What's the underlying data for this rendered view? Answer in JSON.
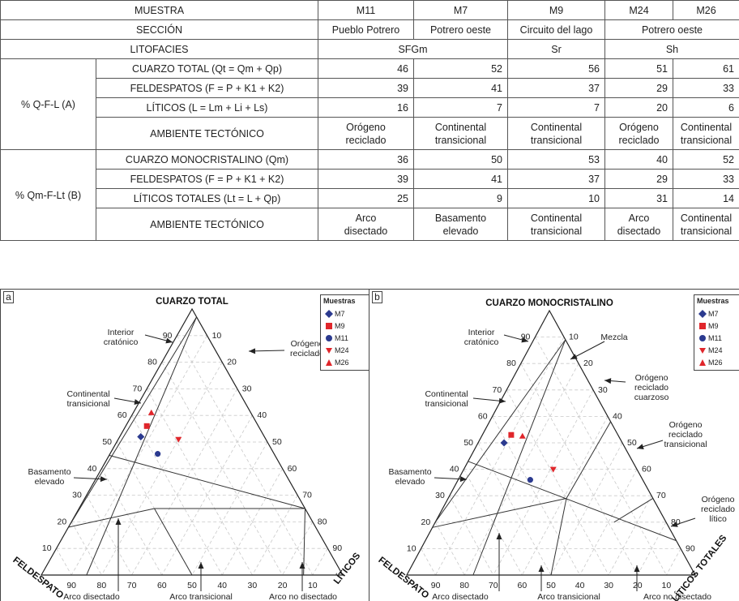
{
  "table": {
    "row_muestra": {
      "label": "MUESTRA",
      "values": [
        "M11",
        "M7",
        "M9",
        "M24",
        "M26"
      ]
    },
    "row_seccion": {
      "label": "SECCIÓN",
      "values": [
        "Pueblo Potrero",
        "Potrero oeste",
        "Circuito del lago",
        "Potrero oeste"
      ]
    },
    "row_litofacies": {
      "label": "LITOFACIES",
      "values": [
        "SFGm",
        "Sr",
        "Sh"
      ]
    },
    "group_a": {
      "label": "% Q-F-L (A)",
      "rows": [
        {
          "label": "CUARZO TOTAL (Qt = Qm + Qp)",
          "values": [
            "46",
            "52",
            "56",
            "51",
            "61"
          ]
        },
        {
          "label": "FELDESPATOS (F = P + K1 + K2)",
          "values": [
            "39",
            "41",
            "37",
            "29",
            "33"
          ]
        },
        {
          "label": "LÍTICOS (L = Lm + Li + Ls)",
          "values": [
            "16",
            "7",
            "7",
            "20",
            "6"
          ]
        }
      ],
      "ambiente": {
        "label": "AMBIENTE TECTÓNICO",
        "values": [
          [
            "Orógeno",
            "reciclado"
          ],
          [
            "Continental",
            "transicional"
          ],
          [
            "Continental",
            "transicional"
          ],
          [
            "Orógeno",
            "reciclado"
          ],
          [
            "Continental",
            "transicional"
          ]
        ]
      }
    },
    "group_b": {
      "label": "% Qm-F-Lt (B)",
      "rows": [
        {
          "label": "CUARZO MONOCRISTALINO (Qm)",
          "values": [
            "36",
            "50",
            "53",
            "40",
            "52"
          ]
        },
        {
          "label": "FELDESPATOS (F = P + K1 + K2)",
          "values": [
            "39",
            "41",
            "37",
            "29",
            "33"
          ]
        },
        {
          "label": "LÍTICOS TOTALES (Lt = L + Qp)",
          "values": [
            "25",
            "9",
            "10",
            "31",
            "14"
          ]
        }
      ],
      "ambiente": {
        "label": "AMBIENTE TECTÓNICO",
        "values": [
          [
            "Arco",
            "disectado"
          ],
          [
            "Basamento",
            "elevado"
          ],
          [
            "Continental",
            "transicional"
          ],
          [
            "Arco",
            "disectado"
          ],
          [
            "Continental",
            "transicional"
          ]
        ]
      }
    }
  },
  "legend": {
    "title": "Muestras",
    "items": [
      {
        "name": "M7",
        "symbol": "diamond",
        "color": "#2b3a8f"
      },
      {
        "name": "M9",
        "symbol": "square",
        "color": "#e0262b"
      },
      {
        "name": "M11",
        "symbol": "circle",
        "color": "#2b3a8f"
      },
      {
        "name": "M24",
        "symbol": "triangle-down",
        "color": "#e0262b"
      },
      {
        "name": "M26",
        "symbol": "triangle-up",
        "color": "#e0262b"
      }
    ]
  },
  "diagram_a": {
    "panel_label": "a",
    "apex_top": "CUARZO TOTAL",
    "apex_left": "FELDESPATO",
    "apex_right": "LÍTICOS",
    "left_ticks": [
      "10",
      "20",
      "30",
      "40",
      "50",
      "60",
      "70",
      "80",
      "90"
    ],
    "right_ticks": [
      "10",
      "20",
      "30",
      "40",
      "50",
      "60",
      "70",
      "80",
      "90"
    ],
    "bottom_ticks": [
      "90",
      "80",
      "70",
      "60",
      "50",
      "40",
      "30",
      "20",
      "10"
    ],
    "fields": {
      "interior": [
        "Interior",
        "cratónico"
      ],
      "continental": [
        "Continental",
        "transicional"
      ],
      "basamento": [
        "Basamento",
        "elevado"
      ],
      "orogeno": [
        "Orógeno",
        "reciclado"
      ],
      "arco_disectado": "Arco disectado",
      "arco_transicional": "Arco transicional",
      "arco_no_disectado": "Arco no disectado"
    }
  },
  "diagram_b": {
    "panel_label": "b",
    "apex_top": "CUARZO MONOCRISTALINO",
    "apex_left": "FELDESPATO",
    "apex_right": "LÍTICOS TOTALES",
    "left_ticks": [
      "10",
      "20",
      "30",
      "40",
      "50",
      "60",
      "70",
      "80",
      "90"
    ],
    "right_ticks": [
      "10",
      "20",
      "30",
      "40",
      "50",
      "60",
      "70",
      "80",
      "90"
    ],
    "bottom_ticks": [
      "90",
      "80",
      "70",
      "60",
      "50",
      "40",
      "30",
      "20",
      "10"
    ],
    "fields": {
      "interior": [
        "Interior",
        "cratónico"
      ],
      "mezcla": "Mezcla",
      "continental": [
        "Continental",
        "transicional"
      ],
      "basamento": [
        "Basamento",
        "elevado"
      ],
      "orog_cuarzoso": [
        "Orógeno",
        "reciclado",
        "cuarzoso"
      ],
      "orog_transicional": [
        "Orógeno",
        "reciclado",
        "transicional"
      ],
      "orog_litico": [
        "Orógeno",
        "reciclado",
        "lítico"
      ],
      "arco_disectado": "Arco disectado",
      "arco_transicional": "Arco transicional",
      "arco_no_disectado": "Arco no disectado"
    }
  }
}
